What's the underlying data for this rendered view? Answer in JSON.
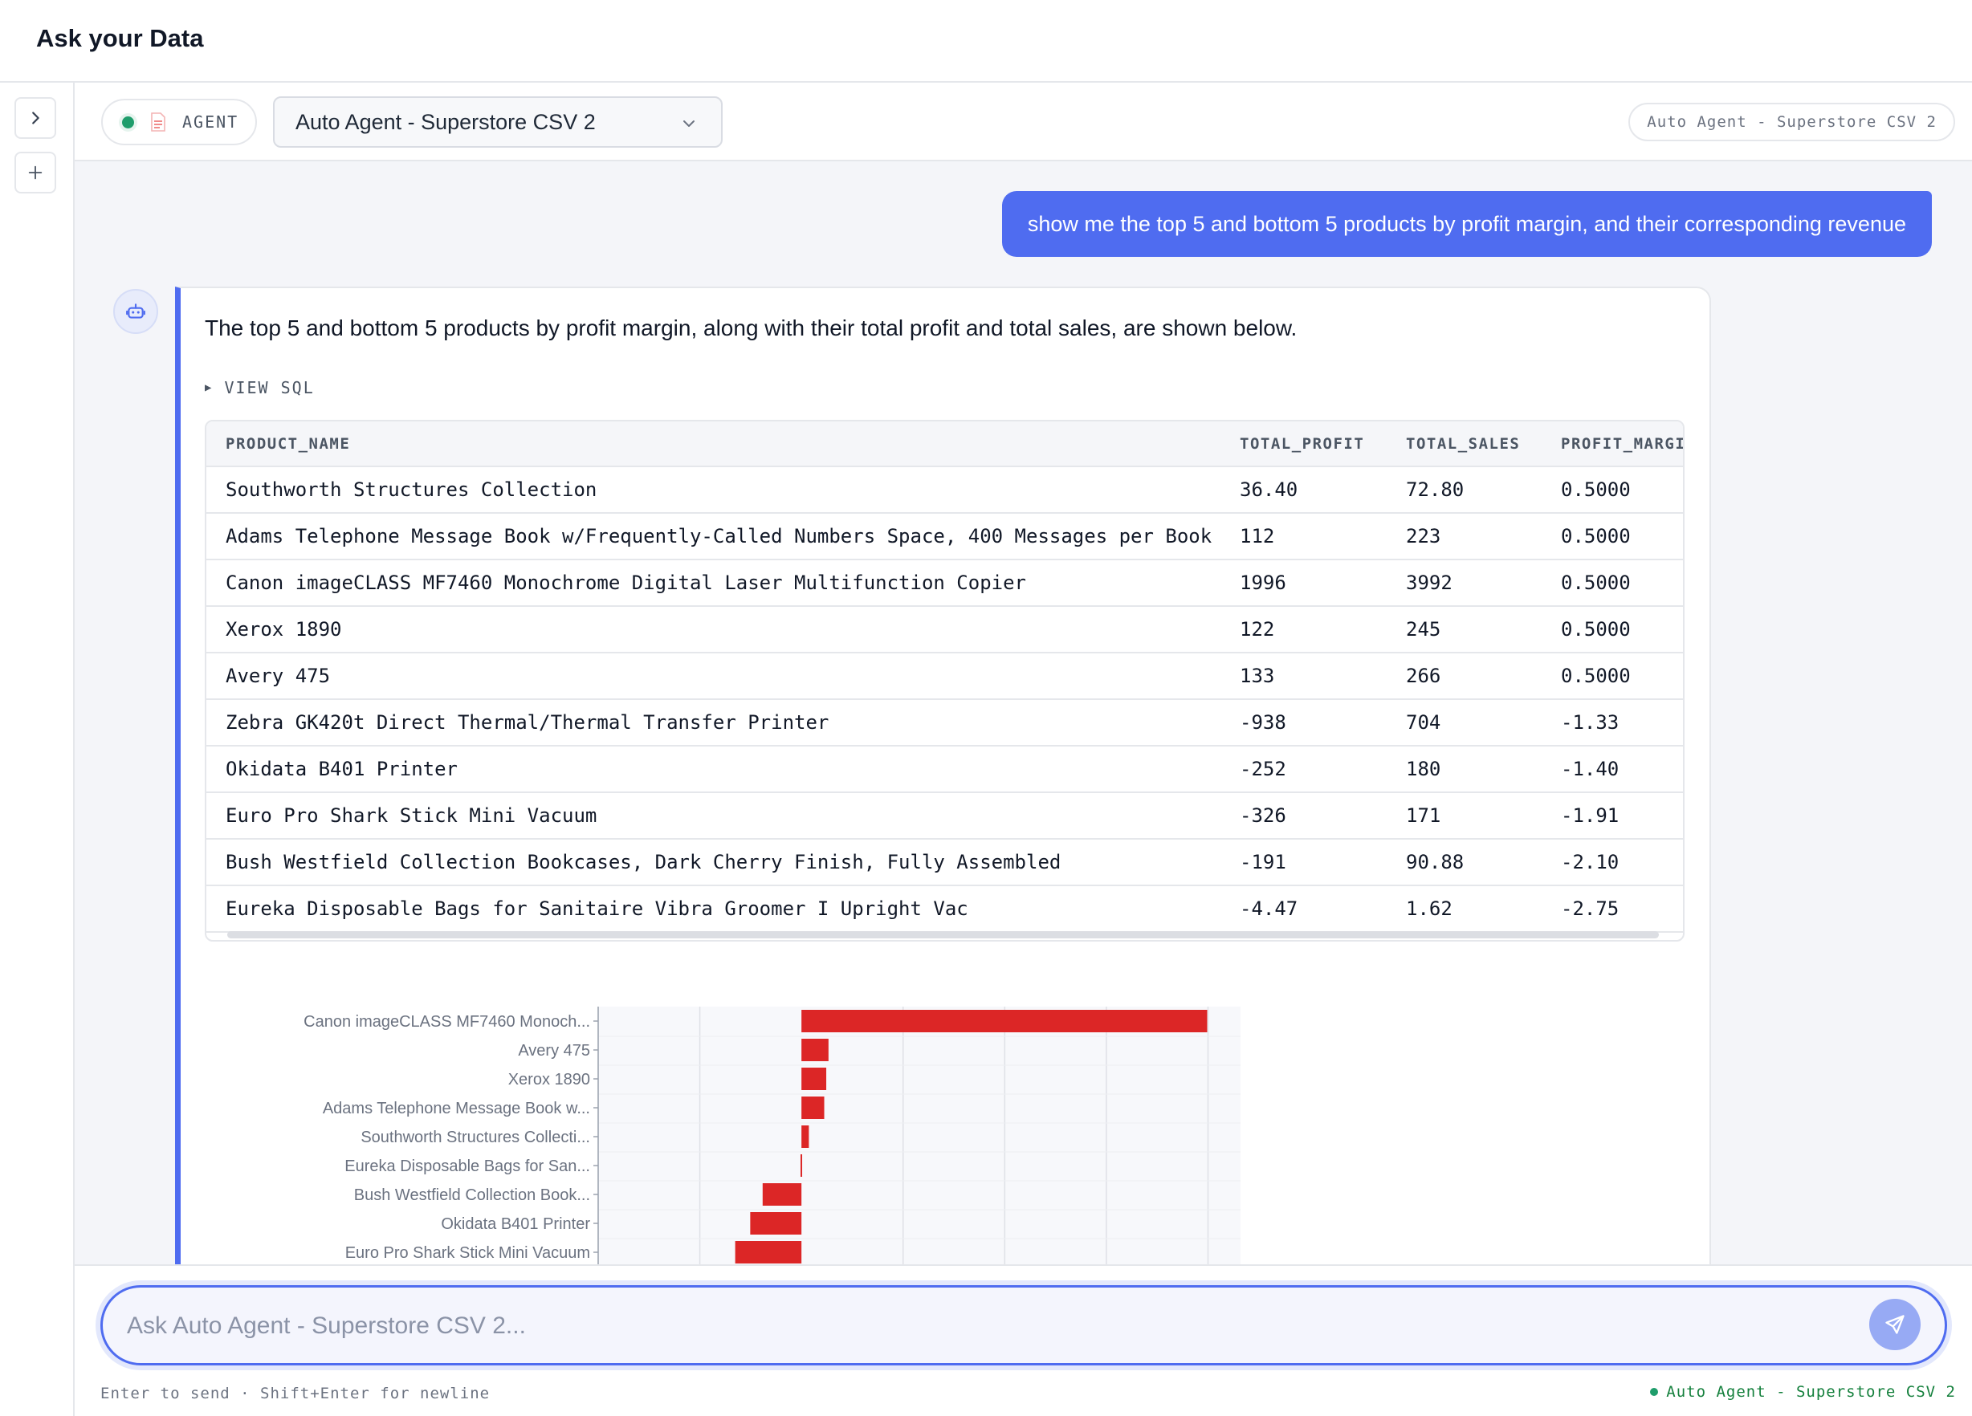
{
  "app": {
    "title": "Ask your Data"
  },
  "rail": {
    "expand_icon": "chevron-right-icon",
    "new_icon": "plus-icon"
  },
  "toolbar": {
    "agent_badge": "AGENT",
    "agent_select_value": "Auto Agent - Superstore CSV 2",
    "agent_pill": "Auto Agent - Superstore CSV 2"
  },
  "user_message": "show me the top 5 and bottom 5 products by profit margin, and their corresponding revenue",
  "assistant": {
    "answer": "The top 5 and bottom 5 products by profit margin, along with their total profit and total sales, are shown below.",
    "view_sql": "VIEW SQL",
    "table": {
      "columns": [
        "PRODUCT_NAME",
        "TOTAL_PROFIT",
        "TOTAL_SALES",
        "PROFIT_MARGIN"
      ],
      "rows": [
        [
          "Southworth Structures Collection",
          "36.40",
          "72.80",
          "0.5000"
        ],
        [
          "Adams Telephone Message Book w/Frequently-Called Numbers Space, 400 Messages per Book",
          "112",
          "223",
          "0.5000"
        ],
        [
          "Canon imageCLASS MF7460 Monochrome Digital Laser Multifunction Copier",
          "1996",
          "3992",
          "0.5000"
        ],
        [
          "Xerox 1890",
          "122",
          "245",
          "0.5000"
        ],
        [
          "Avery 475",
          "133",
          "266",
          "0.5000"
        ],
        [
          "Zebra GK420t Direct Thermal/Thermal Transfer Printer",
          "-938",
          "704",
          "-1.33"
        ],
        [
          "Okidata B401 Printer",
          "-252",
          "180",
          "-1.40"
        ],
        [
          "Euro Pro Shark Stick Mini Vacuum",
          "-326",
          "171",
          "-1.91"
        ],
        [
          "Bush Westfield Collection Bookcases, Dark Cherry Finish, Fully Assembled",
          "-191",
          "90.88",
          "-2.10"
        ],
        [
          "Eureka Disposable Bags for Sanitaire Vibra Groomer I Upright Vac",
          "-4.47",
          "1.62",
          "-2.75"
        ]
      ]
    }
  },
  "chart_data": {
    "type": "bar",
    "orientation": "horizontal",
    "categories": [
      "Canon imageCLASS MF7460 Monoch...",
      "Avery 475",
      "Xerox 1890",
      "Adams Telephone Message Book w...",
      "Southworth Structures Collecti...",
      "Eureka Disposable Bags for San...",
      "Bush Westfield Collection Book...",
      "Okidata B401 Printer",
      "Euro Pro Shark Stick Mini Vacuum"
    ],
    "values": [
      1996,
      133,
      122,
      112,
      36.4,
      -4.47,
      -191,
      -252,
      -326
    ],
    "xlim": [
      -1000,
      2160
    ],
    "grid": true,
    "bar_color": "#dc2626"
  },
  "composer": {
    "placeholder": "Ask Auto Agent - Superstore CSV 2...",
    "hint": "Enter to send · Shift+Enter for newline",
    "status": "Auto Agent - Superstore CSV 2"
  }
}
